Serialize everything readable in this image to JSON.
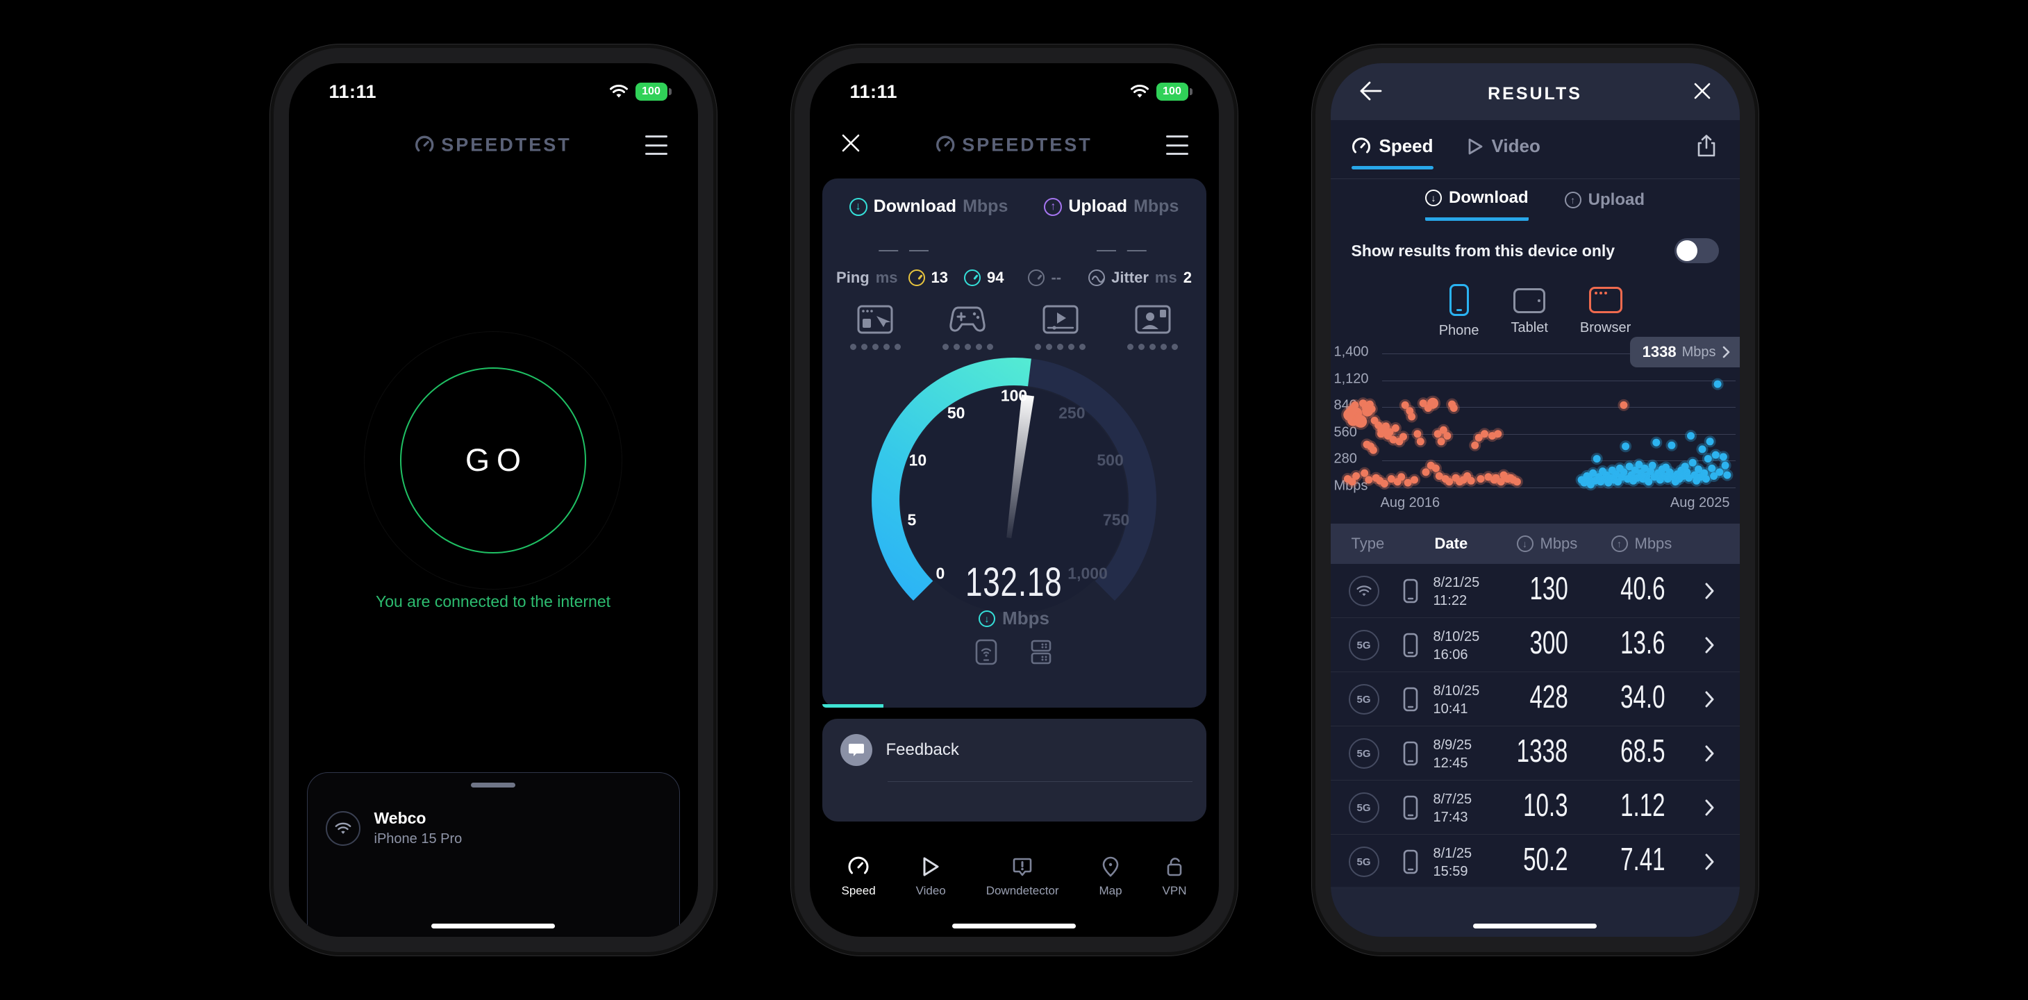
{
  "colors": {
    "green": "#1fc164",
    "teal": "#35dfd8",
    "blue_accent": "#28a7e9",
    "purple": "#a575f0",
    "yellow": "#e8c53e",
    "scatter_orange": "#ee7a5e",
    "scatter_blue": "#2db3f0"
  },
  "left_phone": {
    "status": {
      "time": "11:11",
      "battery": "100"
    },
    "logo": "SPEEDTEST",
    "go_label": "GO",
    "connection_message": "You are connected to the internet",
    "network": {
      "ssid": "Webco",
      "device": "iPhone 15 Pro"
    }
  },
  "middle_phone": {
    "status": {
      "time": "11:11",
      "battery": "100"
    },
    "logo": "SPEEDTEST",
    "download": {
      "label": "Download",
      "unit": "Mbps",
      "placeholder": "— —"
    },
    "upload": {
      "label": "Upload",
      "unit": "Mbps",
      "placeholder": "— —"
    },
    "ping": {
      "label": "Ping",
      "unit": "ms",
      "idle": "13",
      "download": "94",
      "upload": "--",
      "jitter_label": "Jitter",
      "jitter_unit": "ms",
      "jitter_value": "2"
    },
    "gauge": {
      "value": "132.18",
      "unit": "Mbps",
      "ticks": [
        "0",
        "5",
        "10",
        "50",
        "100",
        "250",
        "500",
        "750",
        "1,000"
      ]
    },
    "feedback_label": "Feedback",
    "nav": [
      {
        "label": "Speed"
      },
      {
        "label": "Video"
      },
      {
        "label": "Downdetector"
      },
      {
        "label": "Map"
      },
      {
        "label": "VPN"
      }
    ]
  },
  "right_phone": {
    "title": "RESULTS",
    "tabs": [
      {
        "label": "Speed"
      },
      {
        "label": "Video"
      }
    ],
    "subtabs": [
      {
        "label": "Download"
      },
      {
        "label": "Upload"
      }
    ],
    "toggle_label": "Show results from this device only",
    "devices": [
      "Phone",
      "Tablet",
      "Browser"
    ],
    "badge": {
      "value": "1338",
      "unit": "Mbps"
    },
    "chart_data": {
      "type": "scatter",
      "ylabel": "Mbps",
      "y_ticks": [
        "1,400",
        "1,120",
        "840",
        "560",
        "280",
        "Mbps"
      ],
      "x_ticks": [
        "Aug 2016",
        "Aug 2025"
      ],
      "ylim": [
        0,
        1400
      ],
      "series": [
        {
          "name": "older-results",
          "color": "#ee7a5e",
          "halo": "rgba(238,122,94,0.30)",
          "points": [
            [
              8,
              90
            ],
            [
              13,
              760,
              9
            ],
            [
              18,
              820
            ],
            [
              22,
              700,
              8
            ],
            [
              27,
              860
            ],
            [
              31,
              780,
              8
            ],
            [
              34,
              700
            ],
            [
              38,
              730
            ],
            [
              42,
              690,
              9
            ],
            [
              20,
              60
            ],
            [
              30,
              120
            ],
            [
              48,
              880
            ],
            [
              52,
              150
            ],
            [
              55,
              840
            ],
            [
              58,
              450
            ],
            [
              60,
              800,
              8
            ],
            [
              63,
              80
            ],
            [
              66,
              870
            ],
            [
              68,
              430
            ],
            [
              71,
              820
            ],
            [
              75,
              390
            ],
            [
              78,
              700
            ],
            [
              82,
              100
            ],
            [
              88,
              650
            ],
            [
              92,
              70
            ],
            [
              95,
              560
            ],
            [
              100,
              600,
              8
            ],
            [
              104,
              40
            ],
            [
              108,
              640
            ],
            [
              113,
              540
            ],
            [
              118,
              580
            ],
            [
              122,
              90
            ],
            [
              127,
              500
            ],
            [
              133,
              620
            ],
            [
              138,
              60
            ],
            [
              143,
              480
            ],
            [
              148,
              110
            ],
            [
              153,
              530
            ],
            [
              158,
              860
            ],
            [
              165,
              50
            ],
            [
              170,
              800
            ],
            [
              175,
              740
            ],
            [
              182,
              80
            ],
            [
              190,
              560
            ],
            [
              198,
              480
            ],
            [
              205,
              880
            ],
            [
              212,
              160
            ],
            [
              218,
              830
            ],
            [
              225,
              230
            ],
            [
              230,
              880,
              8
            ],
            [
              238,
              200
            ],
            [
              243,
              560
            ],
            [
              247,
              120
            ],
            [
              252,
              480
            ],
            [
              258,
              600
            ],
            [
              263,
              90
            ],
            [
              268,
              540
            ],
            [
              273,
              60
            ],
            [
              280,
              870
            ],
            [
              285,
              830
            ],
            [
              290,
              100
            ],
            [
              300,
              60
            ],
            [
              310,
              80
            ],
            [
              320,
              120
            ],
            [
              330,
              70
            ],
            [
              340,
              440
            ],
            [
              350,
              520
            ],
            [
              355,
              90
            ],
            [
              365,
              560
            ],
            [
              375,
              110
            ],
            [
              385,
              540
            ],
            [
              390,
              80
            ],
            [
              395,
              100
            ],
            [
              400,
              560
            ],
            [
              408,
              60
            ],
            [
              415,
              130
            ],
            [
              425,
              90
            ],
            [
              433,
              100
            ],
            [
              440,
              80
            ],
            [
              450,
              60
            ],
            [
              728,
              860
            ]
          ]
        },
        {
          "name": "recent-results",
          "color": "#2db3f0",
          "halo": "rgba(45,179,240,0.30)",
          "points": [
            [
              618,
              80
            ],
            [
              625,
              50
            ],
            [
              632,
              120
            ],
            [
              638,
              90
            ],
            [
              642,
              30
            ],
            [
              648,
              150
            ],
            [
              653,
              70
            ],
            [
              658,
              300
            ],
            [
              663,
              110
            ],
            [
              668,
              60
            ],
            [
              673,
              170
            ],
            [
              678,
              90
            ],
            [
              683,
              130
            ],
            [
              688,
              50
            ],
            [
              693,
              100
            ],
            [
              698,
              180
            ],
            [
              703,
              80
            ],
            [
              708,
              140
            ],
            [
              713,
              60
            ],
            [
              718,
              200
            ],
            [
              723,
              110
            ],
            [
              728,
              160
            ],
            [
              733,
              430
            ],
            [
              738,
              90
            ],
            [
              743,
              220
            ],
            [
              748,
              130
            ],
            [
              753,
              70
            ],
            [
              758,
              180
            ],
            [
              763,
              100
            ],
            [
              768,
              240
            ],
            [
              773,
              150
            ],
            [
              778,
              90
            ],
            [
              783,
              200
            ],
            [
              788,
              120
            ],
            [
              793,
              60
            ],
            [
              798,
              170
            ],
            [
              803,
              230
            ],
            [
              808,
              110
            ],
            [
              813,
              470
            ],
            [
              818,
              150
            ],
            [
              823,
              80
            ],
            [
              828,
              190
            ],
            [
              833,
              120
            ],
            [
              838,
              210
            ],
            [
              843,
              90
            ],
            [
              848,
              160
            ],
            [
              853,
              440
            ],
            [
              858,
              110
            ],
            [
              863,
              60
            ],
            [
              868,
              140
            ],
            [
              873,
              90
            ],
            [
              878,
              180
            ],
            [
              883,
              120
            ],
            [
              888,
              220
            ],
            [
              893,
              160
            ],
            [
              898,
              100
            ],
            [
              903,
              540
            ],
            [
              908,
              260
            ],
            [
              913,
              130
            ],
            [
              918,
              70
            ],
            [
              923,
              190
            ],
            [
              928,
              110
            ],
            [
              933,
              400
            ],
            [
              938,
              150
            ],
            [
              943,
              90
            ],
            [
              948,
              300
            ],
            [
              953,
              480
            ],
            [
              958,
              200
            ],
            [
              963,
              120
            ],
            [
              968,
              340
            ],
            [
              973,
              1080
            ],
            [
              978,
              160
            ],
            [
              983,
              1360
            ],
            [
              988,
              320
            ],
            [
              993,
              230
            ],
            [
              998,
              130
            ]
          ]
        }
      ]
    },
    "table": {
      "headers": [
        "Type",
        "Date",
        "Mbps",
        "Mbps"
      ],
      "rows": [
        {
          "type": "wifi",
          "date": "8/21/25",
          "time": "11:22",
          "down": "130",
          "up": "40.6"
        },
        {
          "type": "5G",
          "date": "8/10/25",
          "time": "16:06",
          "down": "300",
          "up": "13.6"
        },
        {
          "type": "5G",
          "date": "8/10/25",
          "time": "10:41",
          "down": "428",
          "up": "34.0"
        },
        {
          "type": "5G",
          "date": "8/9/25",
          "time": "12:45",
          "down": "1338",
          "up": "68.5"
        },
        {
          "type": "5G",
          "date": "8/7/25",
          "time": "17:43",
          "down": "10.3",
          "up": "1.12"
        },
        {
          "type": "5G",
          "date": "8/1/25",
          "time": "15:59",
          "down": "50.2",
          "up": "7.41"
        }
      ]
    }
  }
}
